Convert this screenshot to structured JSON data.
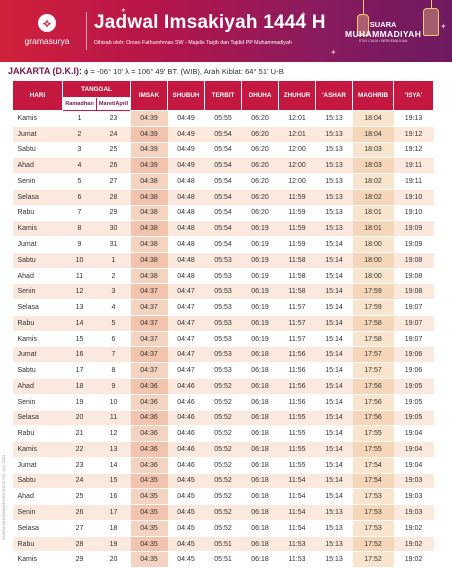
{
  "header": {
    "brand": "gramasurya",
    "title": "Jadwal Imsakiyah 1444 H",
    "subtitle": "Dihisab oleh: Oman Fathurohman SW - Majelis Tarjih dan Tajdid PP Muhammadiyah",
    "partner_line1": "SUARA",
    "partner_line2": "MUHAMMADIYAH",
    "partner_line3": "STAY CALM • BERKEMAJUAN"
  },
  "location": {
    "city": "JAKARTA (D.K.I):",
    "details": "ϕ = -06° 10'  λ = 106° 49'  BT. (WIB), Arah Kiblat: 64° 51'  U-B"
  },
  "side_text": "SUARA MUHAMMADIYAH EDISI NO. 04 / 2023",
  "table": {
    "headers": {
      "hari": "HARI",
      "tanggal": "TANGGAL",
      "ramadhan": "Ramadhan",
      "masehi": "Maret/April",
      "imsak": "IMSAK",
      "shubuh": "SHUBUH",
      "terbit": "TERBIT",
      "dhuha": "DHUHA",
      "zhuhur": "ZHUHUR",
      "ashar": "'ASHAR",
      "maghrib": "MAGHRIB",
      "isya": "'ISYA'"
    },
    "rows": [
      {
        "hari": "Kamis",
        "r": "1",
        "m": "23",
        "imsak": "04:39",
        "shubuh": "04:49",
        "terbit": "05:55",
        "dhuha": "06:20",
        "zhuhur": "12:01",
        "ashar": "15:13",
        "maghrib": "18:04",
        "isya": "19:13"
      },
      {
        "hari": "Jumat",
        "r": "2",
        "m": "24",
        "imsak": "04:39",
        "shubuh": "04:49",
        "terbit": "05:54",
        "dhuha": "06:20",
        "zhuhur": "12:01",
        "ashar": "15:13",
        "maghrib": "18:04",
        "isya": "19:12"
      },
      {
        "hari": "Sabtu",
        "r": "3",
        "m": "25",
        "imsak": "04:39",
        "shubuh": "04:49",
        "terbit": "05:54",
        "dhuha": "06:20",
        "zhuhur": "12:00",
        "ashar": "15:13",
        "maghrib": "18:03",
        "isya": "19:12"
      },
      {
        "hari": "Ahad",
        "r": "4",
        "m": "26",
        "imsak": "04:39",
        "shubuh": "04:49",
        "terbit": "05:54",
        "dhuha": "06:20",
        "zhuhur": "12:00",
        "ashar": "15:13",
        "maghrib": "18:03",
        "isya": "19:11"
      },
      {
        "hari": "Senin",
        "r": "5",
        "m": "27",
        "imsak": "04:38",
        "shubuh": "04:48",
        "terbit": "05:54",
        "dhuha": "06:20",
        "zhuhur": "12:00",
        "ashar": "15:13",
        "maghrib": "18:02",
        "isya": "19:11"
      },
      {
        "hari": "Selasa",
        "r": "6",
        "m": "28",
        "imsak": "04:38",
        "shubuh": "04:48",
        "terbit": "05:54",
        "dhuha": "06:20",
        "zhuhur": "11:59",
        "ashar": "15:13",
        "maghrib": "18:02",
        "isya": "19:10"
      },
      {
        "hari": "Rabu",
        "r": "7",
        "m": "29",
        "imsak": "04:38",
        "shubuh": "04:48",
        "terbit": "05:54",
        "dhuha": "06:20",
        "zhuhur": "11:59",
        "ashar": "15:13",
        "maghrib": "18:01",
        "isya": "19:10"
      },
      {
        "hari": "Kamis",
        "r": "8",
        "m": "30",
        "imsak": "04:38",
        "shubuh": "04:48",
        "terbit": "05:54",
        "dhuha": "06:19",
        "zhuhur": "11:59",
        "ashar": "15:13",
        "maghrib": "18:01",
        "isya": "19:09"
      },
      {
        "hari": "Jumat",
        "r": "9",
        "m": "31",
        "imsak": "04:38",
        "shubuh": "04:48",
        "terbit": "05:54",
        "dhuha": "06:19",
        "zhuhur": "11:59",
        "ashar": "15:14",
        "maghrib": "18:00",
        "isya": "19:09"
      },
      {
        "hari": "Sabtu",
        "r": "10",
        "m": "1",
        "imsak": "04:38",
        "shubuh": "04:48",
        "terbit": "05:53",
        "dhuha": "06:19",
        "zhuhur": "11:58",
        "ashar": "15:14",
        "maghrib": "18:00",
        "isya": "19:08"
      },
      {
        "hari": "Ahad",
        "r": "11",
        "m": "2",
        "imsak": "04:38",
        "shubuh": "04:48",
        "terbit": "05:53",
        "dhuha": "06:19",
        "zhuhur": "11:58",
        "ashar": "15:14",
        "maghrib": "18:00",
        "isya": "19:08"
      },
      {
        "hari": "Senin",
        "r": "12",
        "m": "3",
        "imsak": "04:37",
        "shubuh": "04:47",
        "terbit": "05:53",
        "dhuha": "06:19",
        "zhuhur": "11:58",
        "ashar": "15:14",
        "maghrib": "17:59",
        "isya": "19:08"
      },
      {
        "hari": "Selasa",
        "r": "13",
        "m": "4",
        "imsak": "04:37",
        "shubuh": "04:47",
        "terbit": "05:53",
        "dhuha": "06:19",
        "zhuhur": "11:57",
        "ashar": "15:14",
        "maghrib": "17:59",
        "isya": "19:07"
      },
      {
        "hari": "Rabu",
        "r": "14",
        "m": "5",
        "imsak": "04:37",
        "shubuh": "04:47",
        "terbit": "05:53",
        "dhuha": "06:19",
        "zhuhur": "11:57",
        "ashar": "15:14",
        "maghrib": "17:58",
        "isya": "19:07"
      },
      {
        "hari": "Kamis",
        "r": "15",
        "m": "6",
        "imsak": "04:37",
        "shubuh": "04:47",
        "terbit": "05:53",
        "dhuha": "06:19",
        "zhuhur": "11:57",
        "ashar": "15:14",
        "maghrib": "17:58",
        "isya": "19:07"
      },
      {
        "hari": "Jumat",
        "r": "16",
        "m": "7",
        "imsak": "04:37",
        "shubuh": "04:47",
        "terbit": "05:53",
        "dhuha": "06:18",
        "zhuhur": "11:56",
        "ashar": "15:14",
        "maghrib": "17:57",
        "isya": "19:06"
      },
      {
        "hari": "Sabtu",
        "r": "17",
        "m": "8",
        "imsak": "04:37",
        "shubuh": "04:47",
        "terbit": "05:53",
        "dhuha": "06:18",
        "zhuhur": "11:56",
        "ashar": "15:14",
        "maghrib": "17:57",
        "isya": "19:06"
      },
      {
        "hari": "Ahad",
        "r": "18",
        "m": "9",
        "imsak": "04:36",
        "shubuh": "04:46",
        "terbit": "05:52",
        "dhuha": "06:18",
        "zhuhur": "11:56",
        "ashar": "15:14",
        "maghrib": "17:56",
        "isya": "19:05"
      },
      {
        "hari": "Senin",
        "r": "19",
        "m": "10",
        "imsak": "04:36",
        "shubuh": "04:46",
        "terbit": "05:52",
        "dhuha": "06:18",
        "zhuhur": "11:56",
        "ashar": "15:14",
        "maghrib": "17:56",
        "isya": "19:05"
      },
      {
        "hari": "Selasa",
        "r": "20",
        "m": "11",
        "imsak": "04:36",
        "shubuh": "04:46",
        "terbit": "05:52",
        "dhuha": "06:18",
        "zhuhur": "11:55",
        "ashar": "15:14",
        "maghrib": "17:56",
        "isya": "19:05"
      },
      {
        "hari": "Rabu",
        "r": "21",
        "m": "12",
        "imsak": "04:36",
        "shubuh": "04:46",
        "terbit": "05:52",
        "dhuha": "06:18",
        "zhuhur": "11:55",
        "ashar": "15:14",
        "maghrib": "17:55",
        "isya": "19:04"
      },
      {
        "hari": "Kamis",
        "r": "22",
        "m": "13",
        "imsak": "04:36",
        "shubuh": "04:46",
        "terbit": "05:52",
        "dhuha": "06:18",
        "zhuhur": "11:55",
        "ashar": "15:14",
        "maghrib": "17:55",
        "isya": "19:04"
      },
      {
        "hari": "Jumat",
        "r": "23",
        "m": "14",
        "imsak": "04:36",
        "shubuh": "04:46",
        "terbit": "05:52",
        "dhuha": "06:18",
        "zhuhur": "11:55",
        "ashar": "15:14",
        "maghrib": "17:54",
        "isya": "19:04"
      },
      {
        "hari": "Sabtu",
        "r": "24",
        "m": "15",
        "imsak": "04:35",
        "shubuh": "04:45",
        "terbit": "05:52",
        "dhuha": "06:18",
        "zhuhur": "11:54",
        "ashar": "15:14",
        "maghrib": "17:54",
        "isya": "19:03"
      },
      {
        "hari": "Ahad",
        "r": "25",
        "m": "16",
        "imsak": "04:35",
        "shubuh": "04:45",
        "terbit": "05:52",
        "dhuha": "06:18",
        "zhuhur": "11:54",
        "ashar": "15:14",
        "maghrib": "17:53",
        "isya": "19:03"
      },
      {
        "hari": "Senin",
        "r": "26",
        "m": "17",
        "imsak": "04:35",
        "shubuh": "04:45",
        "terbit": "05:52",
        "dhuha": "06:18",
        "zhuhur": "11:54",
        "ashar": "15:13",
        "maghrib": "17:53",
        "isya": "19:03"
      },
      {
        "hari": "Selasa",
        "r": "27",
        "m": "18",
        "imsak": "04:35",
        "shubuh": "04:45",
        "terbit": "05:52",
        "dhuha": "06:18",
        "zhuhur": "11:54",
        "ashar": "15:13",
        "maghrib": "17:53",
        "isya": "19:02"
      },
      {
        "hari": "Rabu",
        "r": "28",
        "m": "19",
        "imsak": "04:35",
        "shubuh": "04:45",
        "terbit": "05:51",
        "dhuha": "06:18",
        "zhuhur": "11:53",
        "ashar": "15:13",
        "maghrib": "17:52",
        "isya": "19:02"
      },
      {
        "hari": "Kamis",
        "r": "29",
        "m": "20",
        "imsak": "04:35",
        "shubuh": "04:45",
        "terbit": "05:51",
        "dhuha": "06:18",
        "zhuhur": "11:53",
        "ashar": "15:13",
        "maghrib": "17:52",
        "isya": "19:02"
      }
    ]
  }
}
